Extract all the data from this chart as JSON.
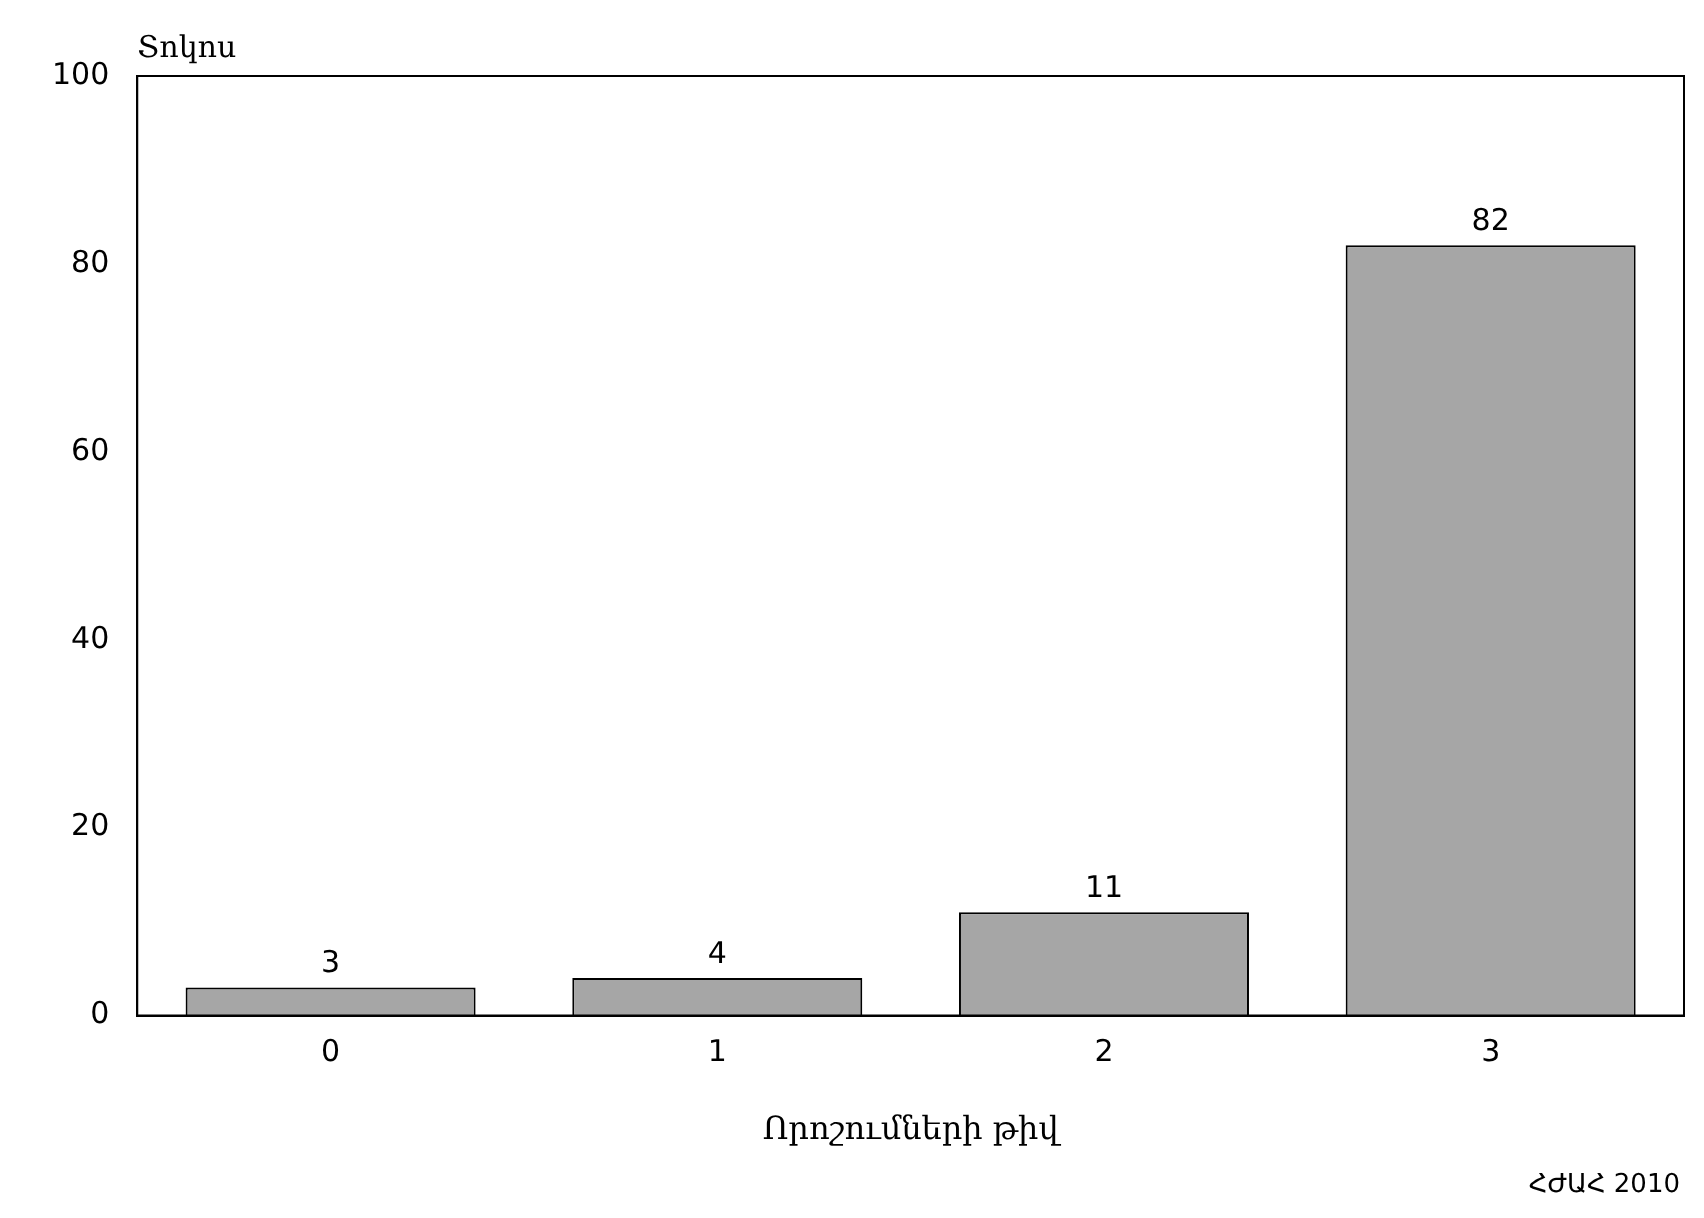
{
  "chart_data": {
    "type": "bar",
    "categories": [
      "0",
      "1",
      "2",
      "3"
    ],
    "values": [
      3,
      4,
      11,
      82
    ],
    "color": "#a6a6a6",
    "xlabel": "Որոշումների թիվ",
    "ylabel": "Տոկոս",
    "ylim": [
      0,
      100
    ],
    "yticks": [
      0,
      20,
      40,
      60,
      80,
      100
    ],
    "grid": false,
    "data_labels": true,
    "annotations": [
      "ՀԺԱՀ 2010"
    ]
  }
}
